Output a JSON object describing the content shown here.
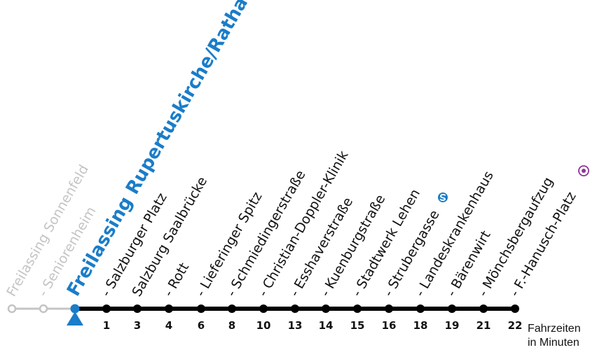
{
  "stops": [
    {
      "name": "Freilassing Sonnenfeld",
      "minutes": "",
      "status": "past"
    },
    {
      "name": "- Seniorenheim",
      "minutes": "",
      "status": "past"
    },
    {
      "name": "Freilassing Rupertuskirche/Rathaus",
      "minutes": "",
      "status": "current"
    },
    {
      "name": "- Salzburger Platz",
      "minutes": "1",
      "status": "future"
    },
    {
      "name": "Salzburg Saalbrücke",
      "minutes": "3",
      "status": "future"
    },
    {
      "name": "- Rott",
      "minutes": "4",
      "status": "future"
    },
    {
      "name": "- Lieferinger Spitz",
      "minutes": "6",
      "status": "future"
    },
    {
      "name": "- Schmiedingerstraße",
      "minutes": "8",
      "status": "future"
    },
    {
      "name": "- Christian-Doppler-Klinik",
      "minutes": "10",
      "status": "future"
    },
    {
      "name": "- Esshaverstraße",
      "minutes": "13",
      "status": "future"
    },
    {
      "name": "- Kuenburgstraße",
      "minutes": "14",
      "status": "future"
    },
    {
      "name": "- Stadtwerk Lehen",
      "minutes": "15",
      "status": "future"
    },
    {
      "name": "- Strubergasse",
      "minutes": "16",
      "status": "future",
      "icon": "s-bahn-icon"
    },
    {
      "name": "- Landeskrankenhaus",
      "minutes": "18",
      "status": "future"
    },
    {
      "name": "- Bärenwirt",
      "minutes": "19",
      "status": "future"
    },
    {
      "name": "- Mönchsbergaufzug",
      "minutes": "21",
      "status": "future"
    },
    {
      "name": "- F.-Hanusch-Platz",
      "minutes": "22",
      "status": "future",
      "icon": "interchange-icon"
    }
  ],
  "legend": {
    "line1": "Fahrzeiten",
    "line2": "in Minuten"
  },
  "icons": {
    "current_marker": "triangle-up-icon",
    "s_bahn": "s-bahn-icon",
    "interchange": "interchange-icon"
  },
  "colors": {
    "line": "#000000",
    "past": "#c4c4c4",
    "current": "#1a7dc9",
    "interchange": "#8e3596",
    "label": "#111111"
  }
}
